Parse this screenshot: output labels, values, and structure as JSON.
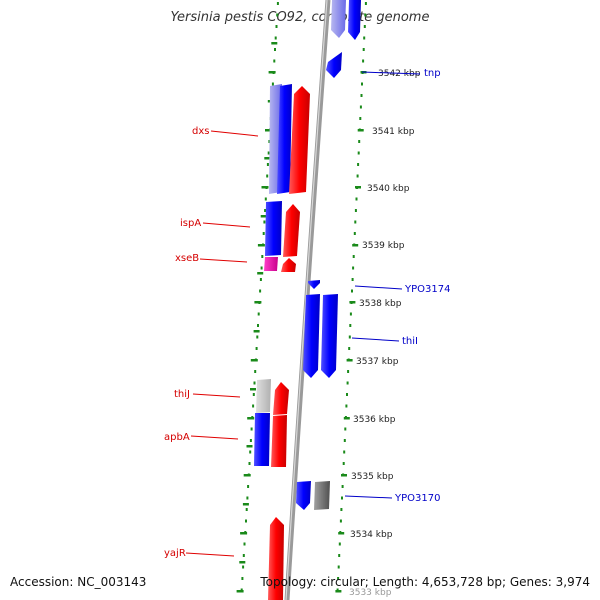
{
  "title": "Yersinia pestis CO92, complete genome",
  "footer": {
    "accession": "Accession: NC_003143",
    "topology": "Topology: circular; Length: 4,653,728 bp; Genes: 3,974"
  },
  "colors": {
    "forward_gene": "#ff0000",
    "reverse_gene": "#0000ff",
    "backbone": "#8c8c8c",
    "ruler_dots": "#1a8a1a",
    "left_labels": "#d40000",
    "right_labels": "#0000c8"
  },
  "axis": {
    "unit": "kbp",
    "ticks": [
      "3542 kbp",
      "3541 kbp",
      "3540 kbp",
      "3539 kbp",
      "3538 kbp",
      "3537 kbp",
      "3536 kbp",
      "3535 kbp",
      "3534 kbp",
      "3533 kbp"
    ]
  },
  "gene_labels": {
    "left": [
      "dxs",
      "ispA",
      "xseB",
      "thiJ",
      "apbA",
      "yajR"
    ],
    "right": [
      "tnp",
      "YPO3174",
      "thiI",
      "YPO3170"
    ]
  }
}
